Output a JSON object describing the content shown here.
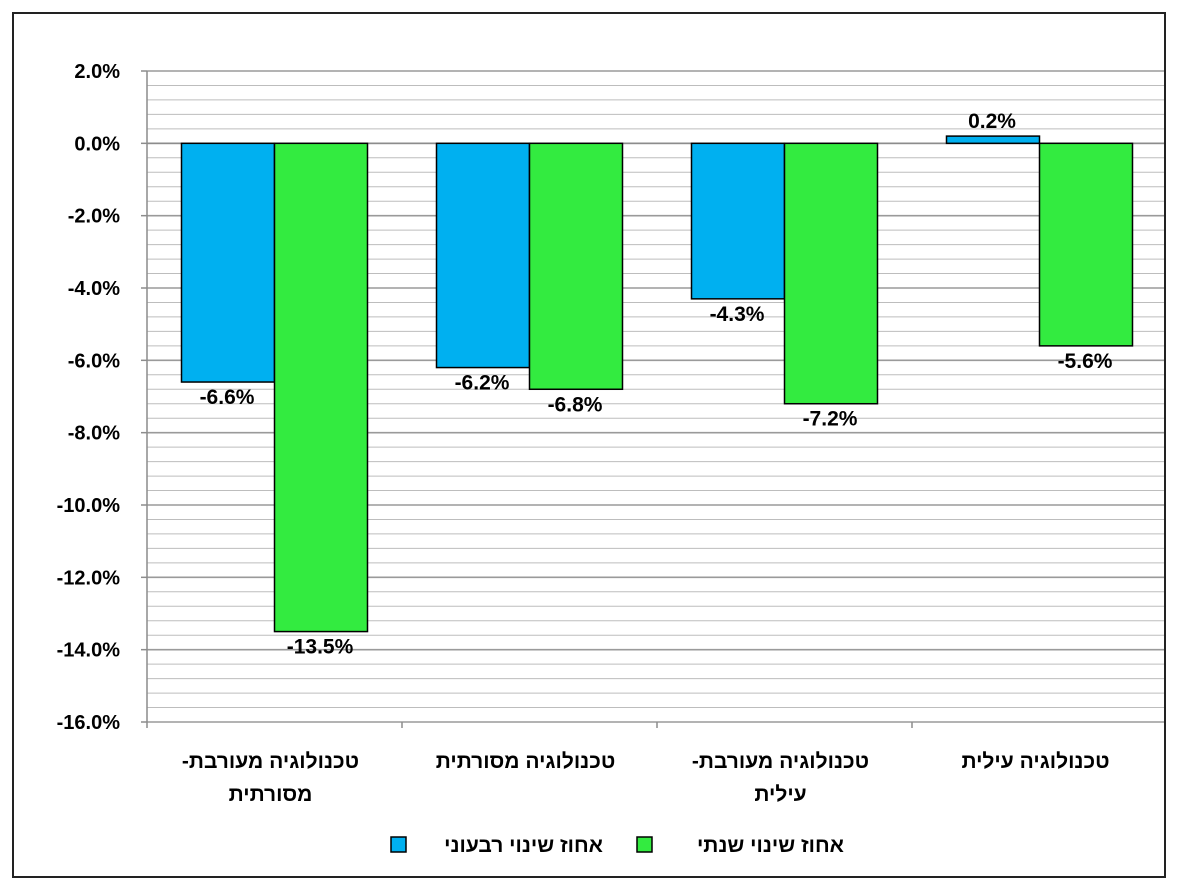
{
  "chart_data": {
    "type": "bar",
    "categories": [
      [
        "טכנולוגיה מעורבת-",
        "מסורתית"
      ],
      [
        "טכנולוגיה מסורתית"
      ],
      [
        "טכנולוגיה  מעורבת-",
        "עילית"
      ],
      [
        "טכנולוגיה עילית"
      ]
    ],
    "series": [
      {
        "name": "אחוז שינוי רבעוני",
        "color": "#00B0F0",
        "values": [
          -6.6,
          -6.2,
          -4.3,
          0.2
        ],
        "labels": [
          "-6.6%",
          "-6.2%",
          "-4.3%",
          "0.2%"
        ]
      },
      {
        "name": "אחוז שינוי שנתי",
        "color": "#33EB40",
        "values": [
          -13.5,
          -6.8,
          -7.2,
          -5.6
        ],
        "labels": [
          "-13.5%",
          "-6.8%",
          "-7.2%",
          "-5.6%"
        ]
      }
    ],
    "ylim": [
      -16,
      2
    ],
    "y_ticks": [
      2,
      0,
      -2,
      -4,
      -6,
      -8,
      -10,
      -12,
      -14,
      -16
    ],
    "y_tick_labels": [
      "2.0%",
      "0.0%",
      "-2.0%",
      "-4.0%",
      "-6.0%",
      "-8.0%",
      "-10.0%",
      "-12.0%",
      "-14.0%",
      "-16.0%"
    ],
    "grid": true,
    "legend_position": "bottom"
  }
}
